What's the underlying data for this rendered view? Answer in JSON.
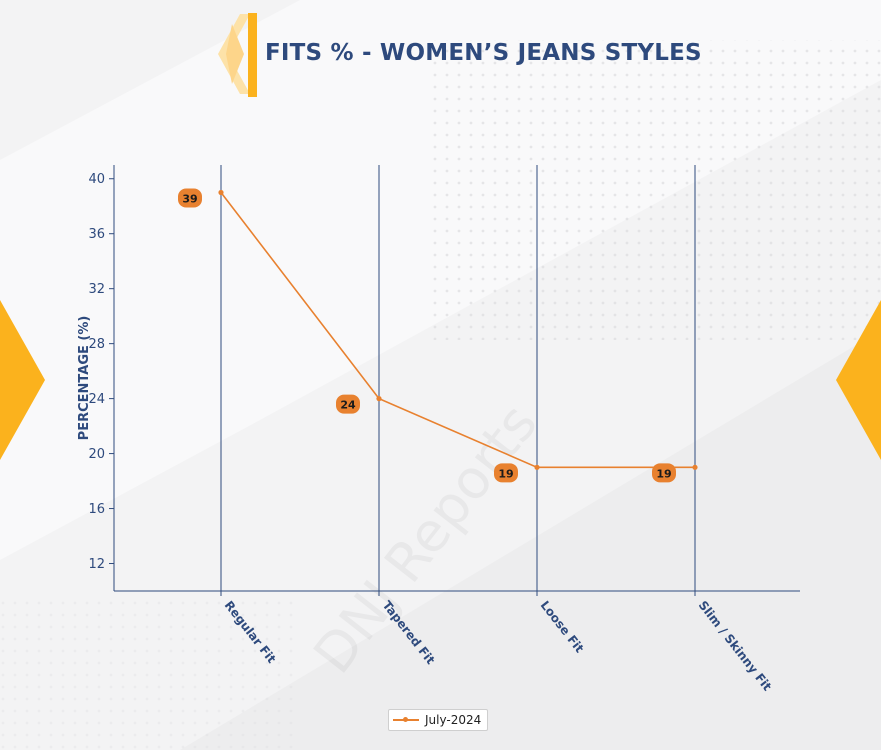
{
  "title": "FITS % - WOMEN’S JEANS STYLES",
  "watermark": "DNJ Reports",
  "colors": {
    "title": "#2e4a7d",
    "axis": "#2e4a7d",
    "series": "#e8812f",
    "accent": "#fbb21d"
  },
  "chart_data": {
    "type": "line",
    "title": "FITS % - WOMEN’S JEANS STYLES",
    "xlabel": "",
    "ylabel": "PERCENTAGE (%)",
    "categories": [
      "Regular Fit",
      "Tapered Fit",
      "Loose Fit",
      "Slim / Skinny Fit"
    ],
    "series": [
      {
        "name": "July-2024",
        "values": [
          39,
          24,
          19,
          19
        ]
      }
    ],
    "yticks": [
      12,
      16,
      20,
      24,
      28,
      32,
      36,
      40
    ],
    "ylim": [
      10,
      41
    ],
    "grid": "vertical",
    "legend": "bottom-center"
  }
}
